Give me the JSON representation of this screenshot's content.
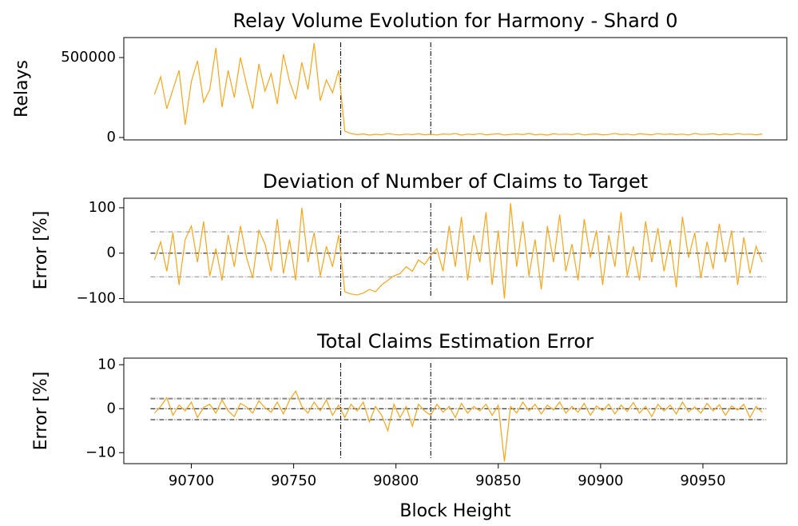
{
  "chart_data": [
    {
      "type": "line",
      "title": "Relay Volume Evolution for Harmony - Shard 0",
      "y_label": "Relays",
      "xlim": [
        90667,
        90991
      ],
      "ylim": [
        -15000,
        625000
      ],
      "yticks": [
        0,
        500000
      ],
      "vlines": [
        90773,
        90817
      ],
      "hlines": [],
      "x": [
        90682,
        90685,
        90688,
        90691,
        90694,
        90697,
        90700,
        90703,
        90706,
        90709,
        90712,
        90715,
        90718,
        90721,
        90724,
        90727,
        90730,
        90733,
        90736,
        90739,
        90742,
        90745,
        90748,
        90751,
        90754,
        90757,
        90760,
        90763,
        90766,
        90769,
        90772,
        90775,
        90778,
        90781,
        90784,
        90787,
        90790,
        90793,
        90796,
        90799,
        90802,
        90805,
        90808,
        90811,
        90814,
        90817,
        90820,
        90823,
        90826,
        90829,
        90832,
        90835,
        90838,
        90841,
        90844,
        90847,
        90850,
        90853,
        90856,
        90859,
        90862,
        90865,
        90868,
        90871,
        90874,
        90877,
        90880,
        90883,
        90886,
        90889,
        90892,
        90895,
        90898,
        90901,
        90904,
        90907,
        90910,
        90913,
        90916,
        90919,
        90922,
        90925,
        90928,
        90931,
        90934,
        90937,
        90940,
        90943,
        90946,
        90949,
        90952,
        90955,
        90958,
        90961,
        90964,
        90967,
        90970,
        90973,
        90976,
        90979
      ],
      "series": [
        {
          "name": "Relays",
          "color": "#f8a51b",
          "values": [
            270000,
            380000,
            180000,
            300000,
            420000,
            80000,
            350000,
            480000,
            220000,
            300000,
            560000,
            190000,
            420000,
            250000,
            500000,
            330000,
            180000,
            460000,
            290000,
            400000,
            210000,
            520000,
            350000,
            240000,
            470000,
            300000,
            590000,
            230000,
            360000,
            280000,
            420000,
            40000,
            25000,
            18000,
            22000,
            15000,
            20000,
            17000,
            24000,
            19000,
            16000,
            21000,
            18000,
            23000,
            17000,
            20000,
            16000,
            22000,
            19000,
            25000,
            15000,
            21000,
            18000,
            24000,
            17000,
            20000,
            23000,
            16000,
            19000,
            22000,
            18000,
            25000,
            17000,
            20000,
            15000,
            23000,
            19000,
            21000,
            18000,
            24000,
            16000,
            20000,
            22000,
            17000,
            19000,
            25000,
            18000,
            21000,
            16000,
            23000,
            20000,
            17000,
            24000,
            19000,
            22000,
            18000,
            21000,
            16000,
            25000,
            19000,
            20000,
            23000,
            17000,
            22000,
            18000,
            24000,
            19000,
            21000,
            17000,
            22000
          ]
        }
      ]
    },
    {
      "type": "line",
      "title": "Deviation of Number of Claims to Target",
      "y_label": "Error [%]",
      "xlim": [
        90667,
        90991
      ],
      "ylim": [
        -108,
        121
      ],
      "yticks": [
        {
          "value": -100,
          "label": "−100"
        },
        0,
        100
      ],
      "vlines": [
        90773,
        90817
      ],
      "hlines": [
        {
          "value": 47,
          "color": "#888888"
        },
        {
          "value": 0,
          "color": "#000000"
        },
        {
          "value": -52,
          "color": "#888888"
        }
      ],
      "x": [
        90682,
        90685,
        90688,
        90691,
        90694,
        90697,
        90700,
        90703,
        90706,
        90709,
        90712,
        90715,
        90718,
        90721,
        90724,
        90727,
        90730,
        90733,
        90736,
        90739,
        90742,
        90745,
        90748,
        90751,
        90754,
        90757,
        90760,
        90763,
        90766,
        90769,
        90772,
        90775,
        90778,
        90781,
        90784,
        90787,
        90790,
        90793,
        90796,
        90799,
        90802,
        90805,
        90808,
        90811,
        90814,
        90817,
        90820,
        90823,
        90826,
        90829,
        90832,
        90835,
        90838,
        90841,
        90844,
        90847,
        90850,
        90853,
        90856,
        90859,
        90862,
        90865,
        90868,
        90871,
        90874,
        90877,
        90880,
        90883,
        90886,
        90889,
        90892,
        90895,
        90898,
        90901,
        90904,
        90907,
        90910,
        90913,
        90916,
        90919,
        90922,
        90925,
        90928,
        90931,
        90934,
        90937,
        90940,
        90943,
        90946,
        90949,
        90952,
        90955,
        90958,
        90961,
        90964,
        90967,
        90970,
        90973,
        90976,
        90979
      ],
      "series": [
        {
          "name": "Error",
          "color": "#f8a51b",
          "values": [
            -15,
            25,
            -40,
            45,
            -70,
            30,
            60,
            -20,
            70,
            -50,
            10,
            -60,
            40,
            -30,
            60,
            -10,
            -55,
            50,
            20,
            -40,
            75,
            -45,
            30,
            -60,
            100,
            -20,
            45,
            -50,
            15,
            -30,
            40,
            -85,
            -90,
            -92,
            -88,
            -80,
            -85,
            -70,
            -60,
            -50,
            -45,
            -30,
            -40,
            -15,
            -25,
            -5,
            10,
            -40,
            60,
            -30,
            80,
            -60,
            40,
            -20,
            90,
            -70,
            50,
            -100,
            110,
            -30,
            70,
            -50,
            30,
            -80,
            60,
            -20,
            85,
            -40,
            20,
            -60,
            75,
            -10,
            50,
            -70,
            40,
            -30,
            90,
            -50,
            15,
            -60,
            70,
            -20,
            55,
            -40,
            30,
            -75,
            80,
            -10,
            45,
            -55,
            25,
            -35,
            65,
            -20,
            50,
            -70,
            35,
            -45,
            15,
            -20
          ]
        }
      ]
    },
    {
      "type": "line",
      "title": "Total Claims Estimation Error",
      "y_label": "Error [%]",
      "x_label": "Block Height",
      "xlim": [
        90667,
        90991
      ],
      "ylim": [
        -12.5,
        11.5
      ],
      "yticks": [
        {
          "value": -10,
          "label": "−10"
        },
        0,
        10
      ],
      "xticks": [
        90700,
        90750,
        90800,
        90850,
        90900,
        90950
      ],
      "vlines": [
        90773,
        90817
      ],
      "hlines": [
        {
          "value": 2.3,
          "color": "#888888"
        },
        {
          "value": 0,
          "color": "#000000"
        },
        {
          "value": -2.5,
          "color": "#888888"
        }
      ],
      "x": [
        90682,
        90685,
        90688,
        90691,
        90694,
        90697,
        90700,
        90703,
        90706,
        90709,
        90712,
        90715,
        90718,
        90721,
        90724,
        90727,
        90730,
        90733,
        90736,
        90739,
        90742,
        90745,
        90748,
        90751,
        90754,
        90757,
        90760,
        90763,
        90766,
        90769,
        90772,
        90775,
        90778,
        90781,
        90784,
        90787,
        90790,
        90793,
        90796,
        90799,
        90802,
        90805,
        90808,
        90811,
        90814,
        90817,
        90820,
        90823,
        90826,
        90829,
        90832,
        90835,
        90838,
        90841,
        90844,
        90847,
        90850,
        90853,
        90856,
        90859,
        90862,
        90865,
        90868,
        90871,
        90874,
        90877,
        90880,
        90883,
        90886,
        90889,
        90892,
        90895,
        90898,
        90901,
        90904,
        90907,
        90910,
        90913,
        90916,
        90919,
        90922,
        90925,
        90928,
        90931,
        90934,
        90937,
        90940,
        90943,
        90946,
        90949,
        90952,
        90955,
        90958,
        90961,
        90964,
        90967,
        90970,
        90973,
        90976,
        90979
      ],
      "series": [
        {
          "name": "Error",
          "color": "#f8a51b",
          "values": [
            -1,
            0.5,
            2.5,
            -1.5,
            0.8,
            -0.5,
            1.5,
            -2,
            0.3,
            1,
            -1,
            2,
            -0.5,
            -1.8,
            1.2,
            0.4,
            -1,
            1.8,
            0.2,
            -0.8,
            1.5,
            -1.2,
            2,
            4,
            0.5,
            -1,
            1.5,
            -0.5,
            2,
            -1.5,
            0.8,
            -2,
            1,
            -0.5,
            1.5,
            -3,
            0.5,
            -1.5,
            -5,
            1,
            -2,
            0.5,
            -4,
            1,
            -0.5,
            -1.5,
            1,
            -0.8,
            0.5,
            -2,
            1.2,
            -1,
            0.5,
            -0.5,
            1,
            -1.5,
            0.8,
            -12,
            0.5,
            -1,
            1.5,
            -0.5,
            1,
            -1.2,
            0.8,
            -0.3,
            1.5,
            -1,
            0.5,
            -0.8,
            1.2,
            -1.5,
            0.6,
            -0.4,
            1,
            -1.2,
            0.8,
            -0.6,
            1.4,
            -1,
            0.5,
            -1.8,
            1,
            -0.5,
            0.8,
            -1.2,
            1.5,
            -0.7,
            0.4,
            -1,
            1.2,
            -0.5,
            0.9,
            -1.5,
            0.6,
            -0.3,
            1,
            -2,
            0.5,
            -0.8
          ]
        }
      ]
    }
  ]
}
